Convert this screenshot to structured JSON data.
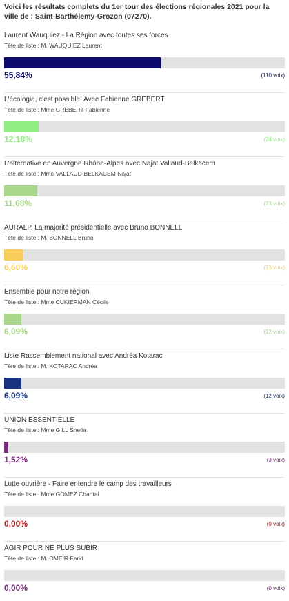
{
  "intro": "Voici les résultats complets du 1er tour des élections régionales 2021 pour la ville de : Saint-Barthélemy-Grozon (07270).",
  "results": [
    {
      "name": "Laurent Wauquiez - La Région avec toutes ses forces",
      "head": "Tête de liste : M. WAUQUIEZ Laurent",
      "percent_label": "55,84%",
      "percent": 55.84,
      "votes": "(110 voix)",
      "color": "#0b0b6b"
    },
    {
      "name": "L'écologie, c'est possible! Avec Fabienne GREBERT",
      "head": "Tête de liste : Mme GREBERT Fabienne",
      "percent_label": "12,18%",
      "percent": 12.18,
      "votes": "(24 voix)",
      "color": "#91ec82"
    },
    {
      "name": "L'alternative en Auvergne Rhône-Alpes avec Najat Vallaud-Belkacem",
      "head": "Tête de liste : Mme VALLAUD-BELKACEM Najat",
      "percent_label": "11,68%",
      "percent": 11.68,
      "votes": "(23 voix)",
      "color": "#a9d68b"
    },
    {
      "name": "AURALP, La majorité présidentielle avec Bruno BONNELL",
      "head": "Tête de liste : M. BONNELL Bruno",
      "percent_label": "6,60%",
      "percent": 6.6,
      "votes": "(13 voix)",
      "color": "#f7cc5a"
    },
    {
      "name": "Ensemble pour notre région",
      "head": "Tête de liste : Mme CUKIERMAN Cécile",
      "percent_label": "6,09%",
      "percent": 6.09,
      "votes": "(12 voix)",
      "color": "#a9d68b"
    },
    {
      "name": "Liste Rassemblement national avec Andréa Kotarac",
      "head": "Tête de liste : M. KOTARAC Andréa",
      "percent_label": "6,09%",
      "percent": 6.09,
      "votes": "(12 voix)",
      "color": "#17337e"
    },
    {
      "name": "UNION ESSENTIELLE",
      "head": "Tête de liste : Mme GILL Shella",
      "percent_label": "1,52%",
      "percent": 1.52,
      "votes": "(3 voix)",
      "color": "#7c2a7c"
    },
    {
      "name": "Lutte ouvrière - Faire entendre le camp des travailleurs",
      "head": "Tête de liste : Mme GOMEZ Chantal",
      "percent_label": "0,00%",
      "percent": 0,
      "votes": "(0 voix)",
      "color": "#b21c1c"
    },
    {
      "name": "AGIR POUR NE PLUS SUBIR",
      "head": "Tête de liste : M. OMEIR Farid",
      "percent_label": "0,00%",
      "percent": 0,
      "votes": "(0 voix)",
      "color": "#6c2b6c"
    }
  ]
}
